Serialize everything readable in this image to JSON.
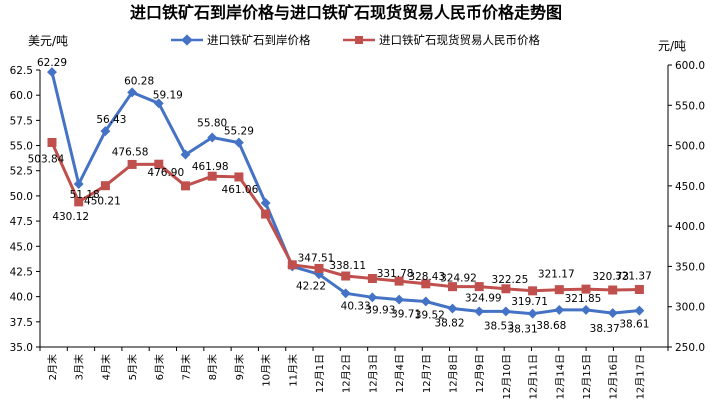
{
  "chart_data": {
    "type": "line",
    "title": "进口铁矿石到岸价格与进口铁矿石现货贸易人民币价格走势图",
    "ylabel_left": "美元/吨",
    "ylabel_right": "元/吨",
    "ylim_left": [
      35.0,
      62.5
    ],
    "ylim_right": [
      250.0,
      600.0
    ],
    "yticks_left": [
      "35.0",
      "37.5",
      "40.0",
      "42.5",
      "45.0",
      "47.5",
      "50.0",
      "52.5",
      "55.0",
      "57.5",
      "60.0",
      "62.5"
    ],
    "yticks_right": [
      "250.0",
      "300.0",
      "350.0",
      "400.0",
      "450.0",
      "500.0",
      "550.0",
      "600.0"
    ],
    "categories": [
      "2月末",
      "3月末",
      "4月末",
      "5月末",
      "6月末",
      "7月末",
      "8月末",
      "9月末",
      "10月末",
      "11月末",
      "12月1日",
      "12月2日",
      "12月3日",
      "12月4日",
      "12月7日",
      "12月8日",
      "12月9日",
      "12月10日",
      "12月11日",
      "12月14日",
      "12月15日",
      "12月16日",
      "12月17日"
    ],
    "legend_position": "top",
    "grid": false,
    "series": [
      {
        "name": "进口铁矿石到岸价格",
        "axis": "left",
        "color": "#4472C4",
        "marker": "diamond",
        "values": [
          62.29,
          51.18,
          56.43,
          60.28,
          59.19,
          54.1,
          55.8,
          55.29,
          49.3,
          43.0,
          42.22,
          40.33,
          39.93,
          39.71,
          39.52,
          38.82,
          38.53,
          38.53,
          38.31,
          38.68,
          38.68,
          38.37,
          38.61
        ],
        "labels": [
          "62.29",
          "51.18",
          "56.43",
          "60.28",
          "59.19",
          "",
          "55.80",
          "55.29",
          "",
          "",
          "42.22",
          "40.33",
          "39.93",
          "39.71",
          "39.52",
          "38.82",
          "",
          "38.53",
          "38.31",
          "38.68",
          "",
          "38.37",
          "38.61"
        ]
      },
      {
        "name": "进口铁矿石现货贸易人民币价格",
        "axis": "right",
        "color": "#C0504D",
        "marker": "square",
        "values": [
          503.84,
          430.12,
          450.21,
          476.58,
          476.9,
          450.0,
          461.98,
          461.06,
          415.0,
          352.0,
          347.51,
          338.11,
          335.0,
          331.78,
          328.43,
          324.92,
          324.99,
          322.25,
          319.71,
          321.17,
          321.85,
          320.73,
          321.37
        ],
        "labels": [
          "503.84",
          "430.12",
          "450.21",
          "476.58",
          "476.90",
          "",
          "461.98",
          "461.06",
          "",
          "",
          "347.51",
          "338.11",
          "",
          "331.78",
          "328.43",
          "324.92",
          "324.99",
          "322.25",
          "319.71",
          "321.17",
          "321.85",
          "320.73",
          "321.37"
        ]
      }
    ]
  }
}
